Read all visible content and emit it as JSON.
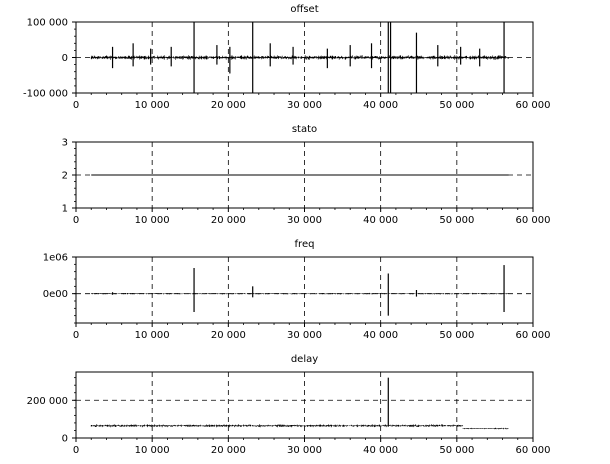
{
  "chart_data": [
    {
      "type": "line",
      "title": "offset",
      "xlim": [
        0,
        60000
      ],
      "ylim": [
        -100000,
        100000
      ],
      "x_ticks": [
        0,
        10000,
        20000,
        30000,
        40000,
        50000,
        60000
      ],
      "x_tick_labels": [
        "0",
        "10 000",
        "20 000",
        "30 000",
        "40 000",
        "50 000",
        "60 000"
      ],
      "y_ticks": [
        -100000,
        0,
        100000
      ],
      "y_tick_labels": [
        "-100 000",
        "0",
        "100 000"
      ],
      "grid": "dashed",
      "series": [
        {
          "x_range": [
            2000,
            56800
          ],
          "baseline": 0,
          "noise_amplitude": 5000,
          "spikes": [
            {
              "x": 4800,
              "min": -30000,
              "max": 30000
            },
            {
              "x": 7500,
              "min": -25000,
              "max": 40000
            },
            {
              "x": 9800,
              "min": -20000,
              "max": 25000
            },
            {
              "x": 12500,
              "min": -25000,
              "max": 30000
            },
            {
              "x": 15500,
              "min": -100000,
              "max": 100000
            },
            {
              "x": 18500,
              "min": -20000,
              "max": 35000
            },
            {
              "x": 20200,
              "min": -45000,
              "max": 30000
            },
            {
              "x": 23200,
              "min": -100000,
              "max": 100000
            },
            {
              "x": 25500,
              "min": -25000,
              "max": 40000
            },
            {
              "x": 28500,
              "min": -20000,
              "max": 30000
            },
            {
              "x": 33000,
              "min": -30000,
              "max": 25000
            },
            {
              "x": 36000,
              "min": -25000,
              "max": 35000
            },
            {
              "x": 38800,
              "min": -30000,
              "max": 40000
            },
            {
              "x": 41000,
              "min": -100000,
              "max": 100000
            },
            {
              "x": 41300,
              "min": -100000,
              "max": 100000
            },
            {
              "x": 44700,
              "min": -100000,
              "max": 70000
            },
            {
              "x": 47500,
              "min": -25000,
              "max": 35000
            },
            {
              "x": 50500,
              "min": -20000,
              "max": 30000
            },
            {
              "x": 53000,
              "min": -25000,
              "max": 25000
            },
            {
              "x": 56200,
              "min": -100000,
              "max": 100000
            }
          ]
        }
      ]
    },
    {
      "type": "line",
      "title": "stato",
      "xlim": [
        0,
        60000
      ],
      "ylim": [
        1,
        3
      ],
      "x_ticks": [
        0,
        10000,
        20000,
        30000,
        40000,
        50000,
        60000
      ],
      "x_tick_labels": [
        "0",
        "10 000",
        "20 000",
        "30 000",
        "40 000",
        "50 000",
        "60 000"
      ],
      "y_ticks": [
        1,
        2,
        3
      ],
      "y_tick_labels": [
        "1",
        "2",
        "3"
      ],
      "grid": "dashed",
      "series": [
        {
          "x": [
            2000,
            56800
          ],
          "y": [
            2,
            2
          ]
        }
      ]
    },
    {
      "type": "line",
      "title": "freq",
      "xlim": [
        0,
        60000
      ],
      "ylim": [
        -800000,
        1000000
      ],
      "x_ticks": [
        0,
        10000,
        20000,
        30000,
        40000,
        50000,
        60000
      ],
      "x_tick_labels": [
        "0",
        "10 000",
        "20 000",
        "30 000",
        "40 000",
        "50 000",
        "60 000"
      ],
      "y_ticks": [
        0,
        1000000
      ],
      "y_tick_labels": [
        "0e00",
        "1e06"
      ],
      "grid": "dashed",
      "series": [
        {
          "x_range": [
            2000,
            56800
          ],
          "baseline": 0,
          "noise_amplitude": 15000,
          "spikes": [
            {
              "x": 4800,
              "min": -30000,
              "max": 40000
            },
            {
              "x": 15500,
              "min": -500000,
              "max": 700000
            },
            {
              "x": 23200,
              "min": -100000,
              "max": 200000
            },
            {
              "x": 41000,
              "min": -600000,
              "max": 550000
            },
            {
              "x": 44700,
              "min": -80000,
              "max": 100000
            },
            {
              "x": 56200,
              "min": -500000,
              "max": 780000
            }
          ]
        }
      ]
    },
    {
      "type": "line",
      "title": "delay",
      "xlim": [
        0,
        60000
      ],
      "ylim": [
        0,
        350000
      ],
      "x_ticks": [
        0,
        10000,
        20000,
        30000,
        40000,
        50000,
        60000
      ],
      "x_tick_labels": [
        "0",
        "10 000",
        "20 000",
        "30 000",
        "40 000",
        "50 000",
        "60 000"
      ],
      "y_ticks": [
        0,
        200000
      ],
      "y_tick_labels": [
        "0",
        "200 000"
      ],
      "grid": "dashed",
      "series": [
        {
          "segments": [
            {
              "x_range": [
                2000,
                50800
              ],
              "level": 65000,
              "noise_amplitude": 6000
            },
            {
              "x_range": [
                50800,
                56800
              ],
              "level": 50000,
              "noise_amplitude": 3000
            }
          ],
          "spikes": [
            {
              "x": 41000,
              "min": 60000,
              "max": 320000
            }
          ]
        }
      ]
    }
  ]
}
